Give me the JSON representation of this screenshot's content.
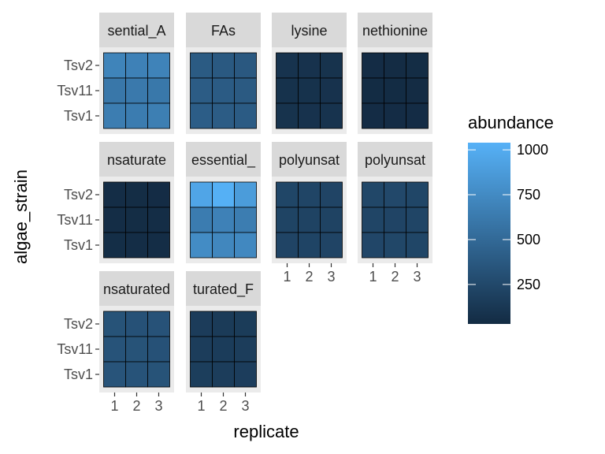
{
  "chart_data": {
    "type": "heatmap",
    "xlabel": "replicate",
    "ylabel": "algae_strain",
    "x_categories": [
      "1",
      "2",
      "3"
    ],
    "y_categories": [
      "Tsv2",
      "Tsv11",
      "Tsv1"
    ],
    "facets": [
      {
        "label": "sential_A",
        "values": [
          [
            700,
            680,
            690
          ],
          [
            600,
            620,
            610
          ],
          [
            650,
            640,
            660
          ]
        ]
      },
      {
        "label": "FAs",
        "values": [
          [
            390,
            380,
            370
          ],
          [
            400,
            395,
            385
          ],
          [
            410,
            400,
            395
          ]
        ]
      },
      {
        "label": "lysine",
        "values": [
          [
            90,
            85,
            88
          ],
          [
            82,
            80,
            84
          ],
          [
            88,
            86,
            90
          ]
        ]
      },
      {
        "label": "nethionine",
        "values": [
          [
            40,
            38,
            42
          ],
          [
            36,
            35,
            38
          ],
          [
            40,
            39,
            41
          ]
        ]
      },
      {
        "label": "nsaturate",
        "values": [
          [
            45,
            42,
            40
          ],
          [
            48,
            44,
            46
          ],
          [
            50,
            47,
            45
          ]
        ]
      },
      {
        "label": "essential_",
        "values": [
          [
            950,
            1030,
            880
          ],
          [
            640,
            680,
            650
          ],
          [
            760,
            720,
            730
          ]
        ]
      },
      {
        "label": "polyunsat",
        "values": [
          [
            230,
            225,
            220
          ],
          [
            215,
            210,
            212
          ],
          [
            222,
            218,
            220
          ]
        ]
      },
      {
        "label": "polyunsat",
        "values": [
          [
            240,
            250,
            230
          ],
          [
            225,
            220,
            228
          ],
          [
            235,
            240,
            232
          ]
        ]
      },
      {
        "label": "nsaturated",
        "values": [
          [
            330,
            320,
            325
          ],
          [
            335,
            330,
            320
          ],
          [
            340,
            335,
            330
          ]
        ]
      },
      {
        "label": "turated_F",
        "values": [
          [
            160,
            150,
            155
          ],
          [
            165,
            158,
            162
          ],
          [
            170,
            165,
            168
          ]
        ]
      }
    ],
    "legend": {
      "title": "abundance",
      "ticks": [
        250,
        500,
        750,
        1000
      ],
      "min": 30,
      "max": 1040,
      "low_color": "#132B43",
      "high_color": "#56B1F7"
    },
    "colors": {
      "panel_background": "#EBEBEB",
      "strip_background": "#D9D9D9",
      "tile_border": "#000000"
    }
  }
}
